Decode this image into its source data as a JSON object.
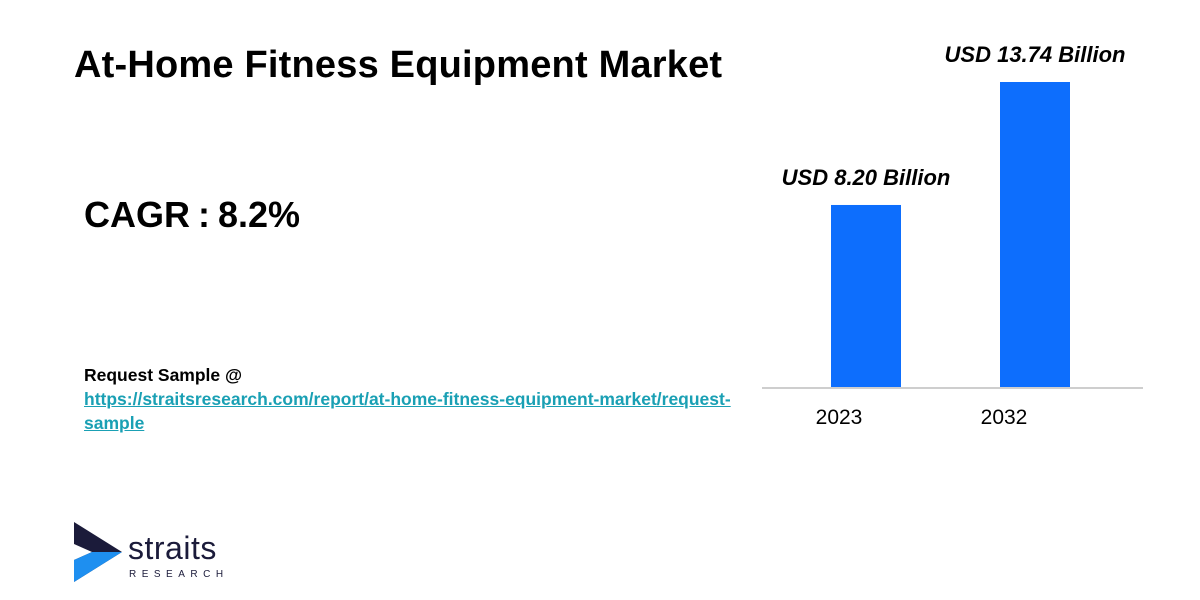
{
  "title": "At-Home Fitness Equipment Market",
  "cagr": {
    "label": "CAGR",
    "separator": ":",
    "value": "8.2%"
  },
  "request": {
    "label": "Request Sample @",
    "link": "https://straitsresearch.com/report/at-home-fitness-equipment-market/request-sample"
  },
  "logo": {
    "name": "straits",
    "sub": "RESEARCH",
    "icon": "straits-arrow-logo-icon"
  },
  "colors": {
    "bar": "#0d6efd",
    "baseline": "#9e9e9e",
    "link": "#1aa0b4",
    "logo_dark": "#1b1b3a",
    "logo_blue": "#1e8ff0"
  },
  "chart_data": {
    "type": "bar",
    "categories": [
      "2023",
      "2032"
    ],
    "values": [
      8.2,
      13.74
    ],
    "data_labels": [
      "USD 8.20 Billion",
      "USD 13.74 Billion"
    ],
    "ylim": [
      0,
      13.74
    ],
    "xlabel": "",
    "ylabel": "",
    "grid": false,
    "legend": "none"
  }
}
